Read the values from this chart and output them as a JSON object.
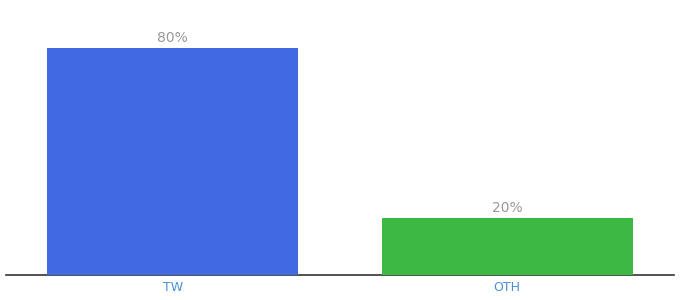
{
  "categories": [
    "TW",
    "OTH"
  ],
  "values": [
    80,
    20
  ],
  "bar_colors": [
    "#4169e1",
    "#3cb943"
  ],
  "bar_labels": [
    "80%",
    "20%"
  ],
  "background_color": "#ffffff",
  "text_color": "#999999",
  "label_fontsize": 10,
  "tick_fontsize": 9,
  "tick_color": "#4a90d9",
  "ylim": [
    0,
    95
  ],
  "figsize": [
    6.8,
    3.0
  ],
  "dpi": 100,
  "bar_width": 0.75,
  "x_positions": [
    0.5,
    1.5
  ]
}
